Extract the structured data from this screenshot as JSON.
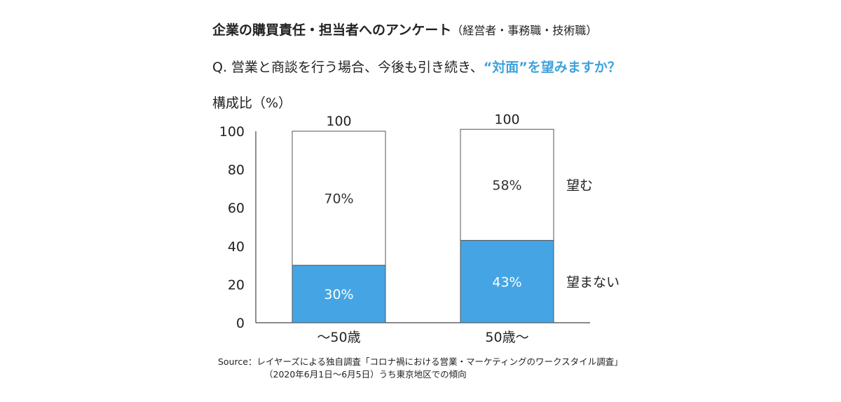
{
  "header": {
    "title": "企業の購買責任・担当者へのアンケート",
    "subtitle": "（経営者・事務職・技術職）"
  },
  "question": {
    "prefix": "Q. 営業と商談を行う場合、今後も引き続き、",
    "highlight": "“対面”を望みますか？"
  },
  "colors": {
    "accent": "#3ea2dc",
    "bar_fill": "#45a5e4",
    "bar_empty": "#ffffff",
    "text": "#222222"
  },
  "chart_data": {
    "type": "bar",
    "stacked": true,
    "ylabel": "構成比（%）",
    "ylim": [
      0,
      100
    ],
    "yticks": [
      "0",
      "20",
      "40",
      "60",
      "80",
      "100"
    ],
    "categories": [
      "〜50歳",
      "50歳〜"
    ],
    "totals": [
      "100",
      "100"
    ],
    "series": [
      {
        "name": "望まない",
        "values": [
          30,
          43
        ],
        "labels": [
          "30%",
          "43%"
        ]
      },
      {
        "name": "望む",
        "values": [
          70,
          58
        ],
        "labels": [
          "70%",
          "58%"
        ]
      }
    ],
    "grid": false,
    "legend": "right"
  },
  "source": {
    "line1": "Source：レイヤーズによる独自調査「コロナ禍における営業・マーケティングのワークスタイル調査」",
    "line2": "（2020年6月1日〜6月5日）うち東京地区での傾向"
  }
}
